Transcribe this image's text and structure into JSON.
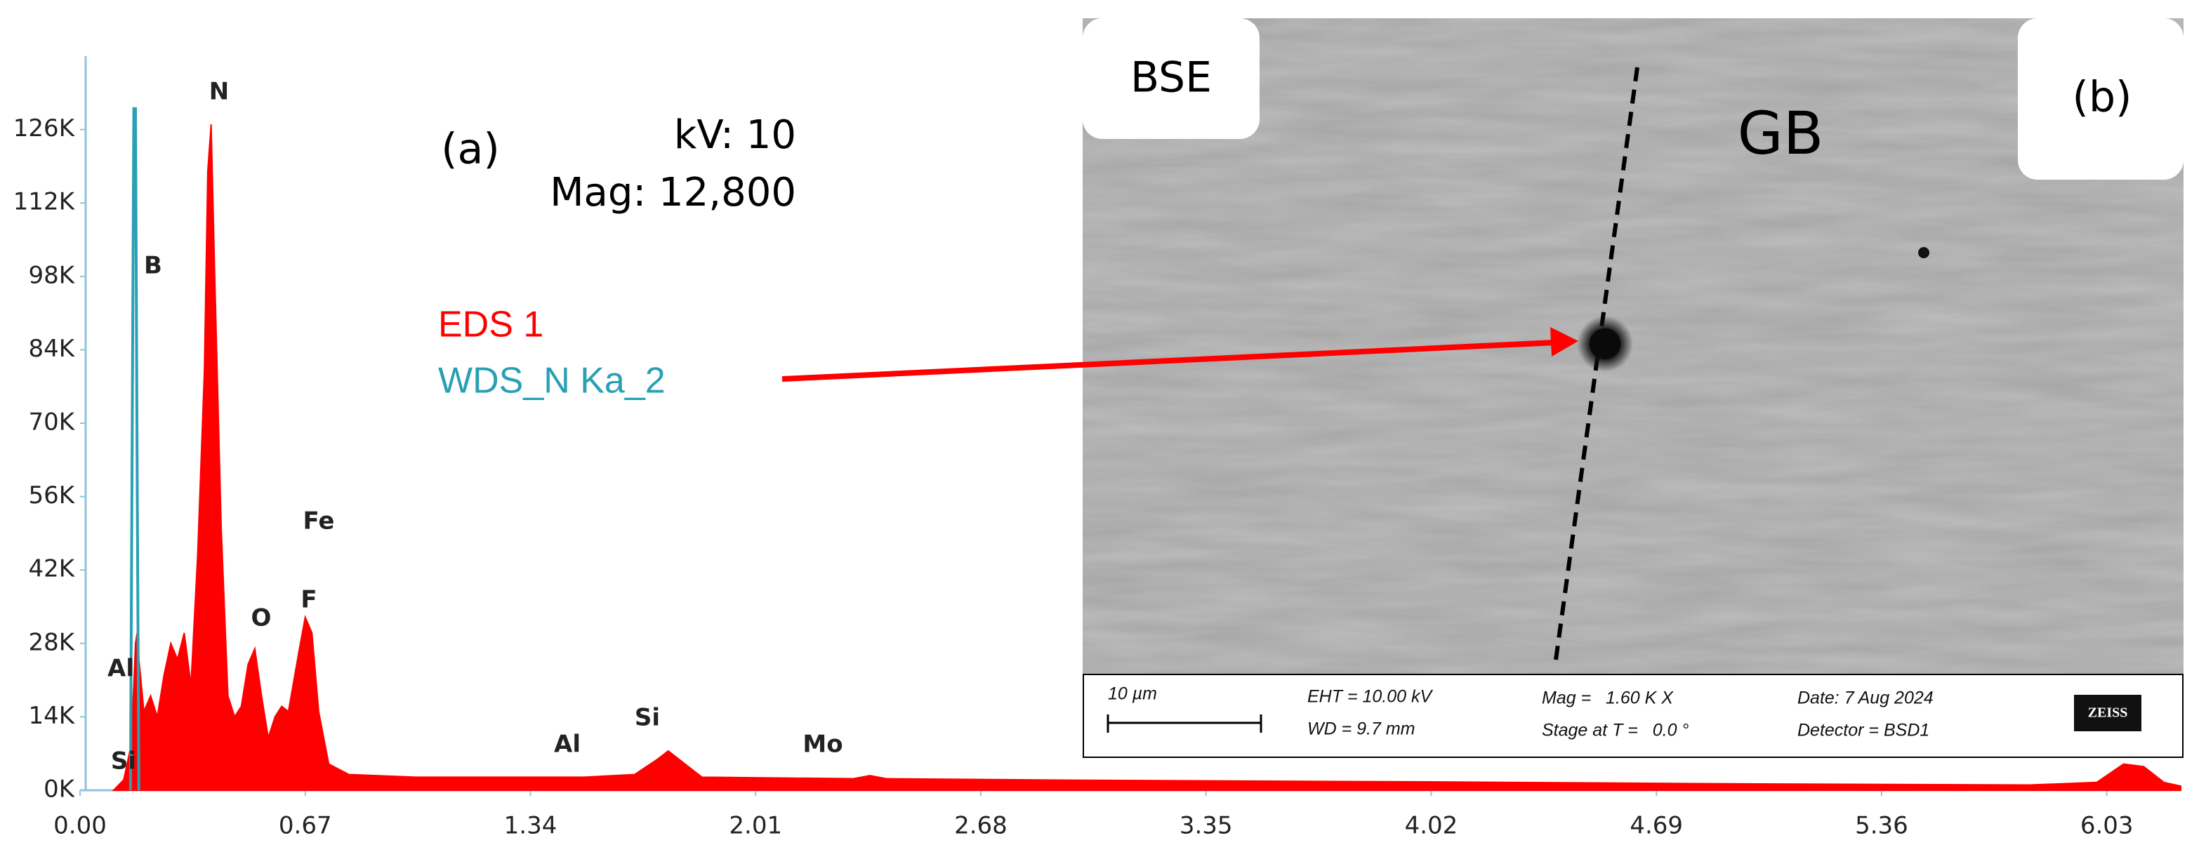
{
  "chart_data": {
    "type": "area",
    "x": [
      0.1,
      0.13,
      0.15,
      0.16,
      0.165,
      0.17,
      0.175,
      0.19,
      0.21,
      0.23,
      0.25,
      0.27,
      0.29,
      0.31,
      0.33,
      0.35,
      0.37,
      0.38,
      0.39,
      0.4,
      0.42,
      0.44,
      0.46,
      0.48,
      0.5,
      0.52,
      0.54,
      0.56,
      0.58,
      0.6,
      0.62,
      0.65,
      0.67,
      0.69,
      0.71,
      0.74,
      0.8,
      1.0,
      1.5,
      1.65,
      1.72,
      1.75,
      1.78,
      1.85,
      2.3,
      2.35,
      2.4,
      3.0,
      4.0,
      5.0,
      5.8,
      6.0,
      6.08,
      6.14,
      6.2,
      6.25
    ],
    "series": [
      {
        "name": "EDS 1",
        "color": "#ff0000",
        "values": [
          0,
          2000,
          8000,
          20000,
          28000,
          30000,
          25000,
          15000,
          18000,
          14000,
          22000,
          28000,
          25000,
          30000,
          20000,
          45000,
          80000,
          118000,
          127000,
          100000,
          50000,
          18000,
          14000,
          16000,
          24000,
          27000,
          18000,
          10000,
          14000,
          16000,
          15000,
          26000,
          33000,
          30000,
          15000,
          5000,
          3000,
          2500,
          2500,
          3000,
          6000,
          7500,
          6000,
          2500,
          2200,
          2800,
          2200,
          1900,
          1600,
          1200,
          1000,
          1500,
          5000,
          4500,
          1500,
          800
        ]
      },
      {
        "name": "WDS_N Ka_2",
        "color": "#2aa0b4",
        "values": [
          null,
          null,
          0,
          130000,
          130000,
          60000,
          0,
          null,
          null,
          null,
          null,
          null,
          null,
          null,
          null,
          null,
          null,
          null,
          null,
          null,
          null,
          null,
          null,
          null,
          null,
          null,
          null,
          null,
          null,
          null,
          null,
          null,
          null,
          null,
          null,
          null,
          null,
          null,
          null,
          null,
          null,
          null,
          null,
          null,
          null,
          null,
          null,
          null,
          null,
          null,
          null,
          null,
          null,
          null,
          null,
          null
        ]
      }
    ],
    "xlim": [
      0,
      6.25
    ],
    "ylim": [
      0,
      140000
    ],
    "xticks": [
      {
        "value": 0,
        "label": "0.00"
      },
      0.67,
      1.34,
      2.01,
      2.68,
      3.35,
      4.02,
      4.69,
      5.36,
      6.03
    ],
    "yticks": [
      {
        "value": 0,
        "label": "0K"
      },
      {
        "value": 14000,
        "label": "14K"
      },
      {
        "value": 28000,
        "label": "28K"
      },
      {
        "value": 42000,
        "label": "42K"
      },
      {
        "value": 56000,
        "label": "56K"
      },
      {
        "value": 70000,
        "label": "70K"
      },
      {
        "value": 84000,
        "label": "84K"
      },
      {
        "value": 98000,
        "label": "98K"
      },
      {
        "value": 112000,
        "label": "112K"
      },
      {
        "value": 126000,
        "label": "126K"
      }
    ],
    "annotations": [
      "N",
      "B",
      "Fe",
      "O",
      "F",
      "Al",
      "Si",
      "Al",
      "Si",
      "Mo"
    ],
    "panel_label": "(a)",
    "settings_text": [
      "kV: 10",
      "Mag: 12,800"
    ]
  },
  "sem_image": {
    "panel_label": "(b)",
    "mode": "BSE",
    "feature": "GB",
    "info_bar": {
      "scale": "10 µm",
      "eht": "EHT = 10.00 kV",
      "wd": "WD = 9.7 mm",
      "mag": "Mag =   1.60 K X",
      "stage": "Stage at T =   0.0 °",
      "date": "Date: 7 Aug 2024",
      "detector": "Detector = BSD1",
      "logo": "ZEISS"
    }
  }
}
